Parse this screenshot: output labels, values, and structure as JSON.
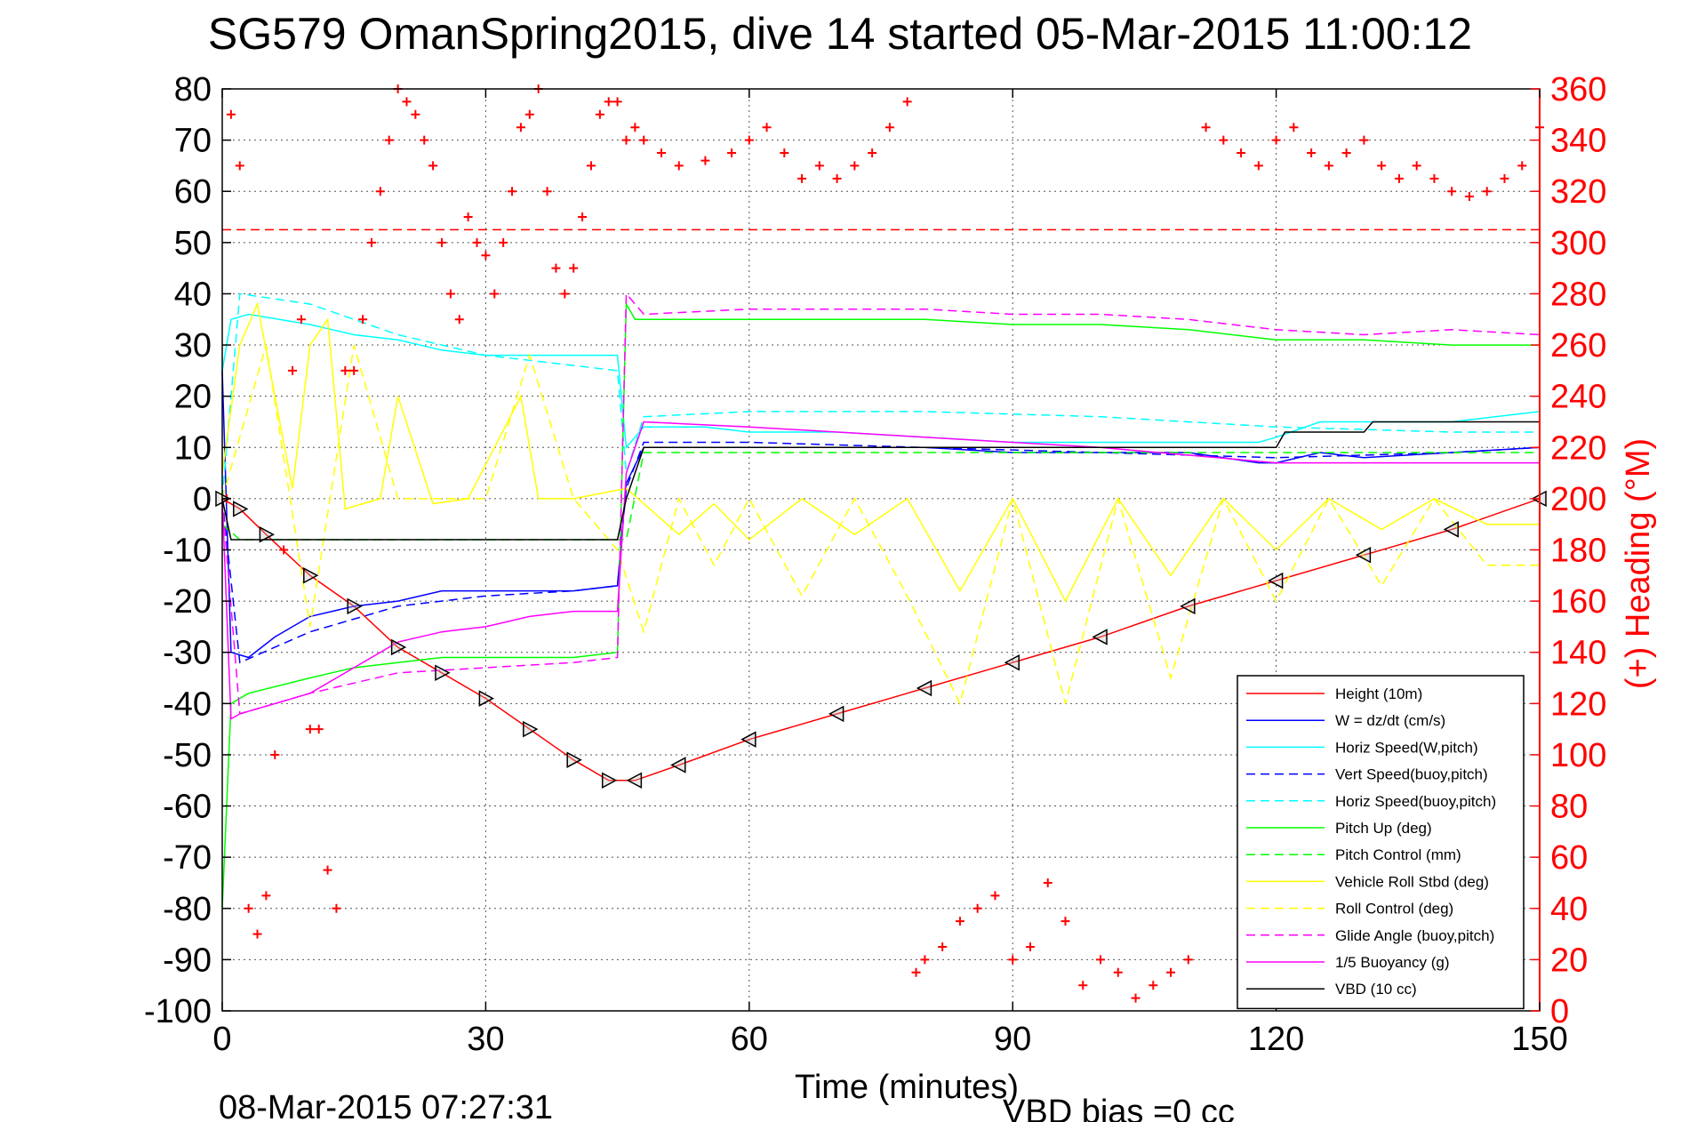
{
  "title": "SG579 OmanSpring2015, dive 14 started 05-Mar-2015 11:00:12",
  "footer_date": "08-Mar-2015 07:27:31",
  "vbd_bias": "VBD bias =0 cc",
  "colors": {
    "red": "#ff0000",
    "blue": "#0000ff",
    "cyan": "#00ffff",
    "green": "#00ff00",
    "yellow": "#ffff00",
    "magenta": "#ff00ff",
    "black": "#000000"
  },
  "chart_data": {
    "type": "line",
    "xlabel": "Time (minutes)",
    "ylabel_right": "(+) Heading (°M)",
    "xlim": [
      0,
      150
    ],
    "ylim_left": [
      -100,
      80
    ],
    "ylim_right": [
      0,
      360
    ],
    "x_ticks": [
      0,
      30,
      60,
      90,
      120,
      150
    ],
    "y_left_ticks": [
      80,
      70,
      60,
      50,
      40,
      30,
      20,
      10,
      0,
      -10,
      -20,
      -30,
      -40,
      -50,
      -60,
      -70,
      -80,
      -90,
      -100
    ],
    "y_right_ticks": [
      360,
      340,
      320,
      300,
      280,
      260,
      240,
      220,
      200,
      180,
      160,
      140,
      120,
      100,
      80,
      60,
      40,
      20,
      0
    ],
    "grid": true,
    "legend_position": "bottom-right",
    "heading_reference_line": 305,
    "series": [
      {
        "name": "Height (10m)",
        "color": "#ff0000",
        "dash": "solid",
        "x": [
          0,
          2,
          5,
          10,
          15,
          20,
          25,
          30,
          35,
          40,
          44,
          47,
          52,
          60,
          70,
          80,
          90,
          100,
          110,
          120,
          130,
          140,
          150
        ],
        "y": [
          0,
          -2,
          -7,
          -15,
          -21,
          -29,
          -34,
          -39,
          -45,
          -51,
          -55,
          -55,
          -52,
          -47,
          -42,
          -37,
          -32,
          -27,
          -21,
          -16,
          -11,
          -6,
          0
        ]
      },
      {
        "name": "W = dz/dt (cm/s)",
        "color": "#0000ff",
        "dash": "solid",
        "x": [
          0,
          1,
          3,
          6,
          10,
          15,
          20,
          25,
          30,
          35,
          40,
          45,
          46,
          48,
          55,
          60,
          70,
          80,
          90,
          100,
          110,
          118,
          120,
          125,
          130,
          140,
          150
        ],
        "y": [
          25,
          -30,
          -31,
          -27,
          -23,
          -21,
          -20,
          -18,
          -18,
          -18,
          -18,
          -17,
          3,
          10,
          10,
          10,
          10,
          10,
          9,
          9,
          9,
          7,
          7,
          9,
          8,
          9,
          10
        ]
      },
      {
        "name": "Horiz Speed(W,pitch)",
        "color": "#00ffff",
        "dash": "solid",
        "x": [
          0,
          1,
          3,
          10,
          15,
          20,
          25,
          30,
          35,
          40,
          45,
          46,
          48,
          55,
          60,
          70,
          80,
          90,
          100,
          110,
          118,
          120,
          125,
          130,
          140,
          150
        ],
        "y": [
          25,
          35,
          36,
          34,
          32,
          31,
          29,
          28,
          28,
          28,
          28,
          10,
          14,
          14,
          13,
          13,
          12,
          11,
          11,
          11,
          11,
          12,
          15,
          15,
          15,
          17
        ]
      },
      {
        "name": "Vert Speed(buoy,pitch)",
        "color": "#0000ff",
        "dash": "dashed",
        "x": [
          0,
          2,
          10,
          20,
          30,
          40,
          45,
          46,
          48,
          60,
          80,
          100,
          120,
          140,
          150
        ],
        "y": [
          0,
          -32,
          -26,
          -21,
          -19,
          -18,
          -17,
          2,
          11,
          11,
          10,
          9,
          8,
          9,
          10
        ]
      },
      {
        "name": "Horiz Speed(buoy,pitch)",
        "color": "#00ffff",
        "dash": "dashed",
        "x": [
          0,
          2,
          10,
          20,
          30,
          40,
          45,
          46,
          48,
          60,
          80,
          100,
          120,
          140,
          150
        ],
        "y": [
          0,
          40,
          38,
          32,
          28,
          26,
          25,
          5,
          16,
          17,
          17,
          16,
          14,
          13,
          13
        ]
      },
      {
        "name": "Pitch Up (deg)",
        "color": "#00ff00",
        "dash": "solid",
        "x": [
          0,
          1,
          3,
          10,
          15,
          20,
          25,
          30,
          35,
          40,
          45,
          46,
          47,
          50,
          60,
          70,
          80,
          90,
          100,
          110,
          120,
          130,
          140,
          150
        ],
        "y": [
          -80,
          -40,
          -38,
          -35,
          -33,
          -32,
          -31,
          -31,
          -31,
          -31,
          -30,
          38,
          35,
          35,
          35,
          35,
          35,
          34,
          34,
          33,
          31,
          31,
          30,
          30
        ]
      },
      {
        "name": "Pitch Control (mm)",
        "color": "#00ff00",
        "dash": "dashed",
        "x": [
          0,
          2,
          45,
          46,
          48,
          150
        ],
        "y": [
          -5,
          -8,
          -8,
          -8,
          9,
          9
        ]
      },
      {
        "name": "Vehicle Roll Stbd (deg)",
        "color": "#ffff00",
        "dash": "solid",
        "x": [
          0,
          2,
          4,
          8,
          10,
          12,
          14,
          18,
          20,
          24,
          28,
          34,
          36,
          40,
          46,
          48,
          52,
          56,
          60,
          66,
          72,
          78,
          84,
          90,
          96,
          102,
          108,
          114,
          120,
          126,
          132,
          138,
          144,
          150
        ],
        "y": [
          5,
          30,
          38,
          2,
          30,
          35,
          -2,
          0,
          20,
          -1,
          0,
          20,
          0,
          0,
          2,
          -1,
          -7,
          -1,
          -8,
          0,
          -7,
          0,
          -18,
          0,
          -20,
          0,
          -15,
          0,
          -10,
          0,
          -6,
          0,
          -5,
          -5
        ]
      },
      {
        "name": "Roll Control (deg)",
        "color": "#ffff00",
        "dash": "dashed",
        "x": [
          0,
          5,
          10,
          15,
          20,
          25,
          30,
          35,
          40,
          45,
          48,
          52,
          56,
          60,
          66,
          72,
          78,
          84,
          90,
          96,
          102,
          108,
          114,
          120,
          126,
          132,
          138,
          144,
          150
        ],
        "y": [
          0,
          30,
          -25,
          30,
          0,
          0,
          0,
          28,
          0,
          -10,
          -26,
          0,
          -13,
          0,
          -19,
          0,
          -19,
          -40,
          0,
          -40,
          0,
          -35,
          0,
          -20,
          0,
          -17,
          0,
          -13,
          -13
        ]
      },
      {
        "name": "Glide Angle (buoy,pitch)",
        "color": "#ff00ff",
        "dash": "dashed",
        "x": [
          0,
          2,
          10,
          20,
          30,
          40,
          45,
          46,
          48,
          60,
          70,
          80,
          90,
          100,
          110,
          120,
          130,
          140,
          150
        ],
        "y": [
          0,
          -42,
          -38,
          -34,
          -33,
          -32,
          -31,
          40,
          36,
          37,
          37,
          37,
          36,
          36,
          35,
          33,
          32,
          33,
          32
        ]
      },
      {
        "name": "1/5 Buoyancy (g)",
        "color": "#ff00ff",
        "dash": "solid",
        "x": [
          0,
          1,
          2,
          10,
          15,
          20,
          25,
          30,
          35,
          40,
          45,
          46,
          48,
          60,
          80,
          100,
          120,
          140,
          150
        ],
        "y": [
          0,
          -43,
          -42,
          -38,
          -33,
          -28,
          -26,
          -25,
          -23,
          -22,
          -22,
          5,
          15,
          14,
          12,
          10,
          7,
          7,
          7
        ]
      },
      {
        "name": "VBD (10 cc)",
        "color": "#000000",
        "dash": "solid",
        "x": [
          0,
          1,
          2,
          45,
          46,
          48,
          60,
          65,
          66,
          90,
          120,
          121,
          122,
          130,
          131,
          150
        ],
        "y": [
          0,
          -8,
          -8,
          -8,
          0,
          10,
          10,
          10,
          10,
          10,
          10,
          13,
          13,
          13,
          15,
          15
        ]
      },
      {
        "name": "Heading",
        "color": "#ff0000",
        "dash": "markers",
        "axis": "right",
        "x": [
          0.5,
          1,
          2,
          3,
          4,
          5,
          6,
          7,
          8,
          9,
          10,
          11,
          12,
          13,
          14,
          15,
          16,
          17,
          18,
          19,
          20,
          21,
          22,
          23,
          24,
          25,
          26,
          27,
          28,
          29,
          30,
          31,
          32,
          33,
          34,
          35,
          36,
          37,
          38,
          39,
          40,
          41,
          42,
          43,
          44,
          45,
          46,
          47,
          48,
          50,
          52,
          55,
          58,
          60,
          62,
          64,
          66,
          68,
          70,
          72,
          74,
          76,
          78,
          79,
          80,
          82,
          84,
          86,
          88,
          90,
          92,
          94,
          96,
          98,
          100,
          102,
          104,
          106,
          108,
          110,
          112,
          114,
          116,
          118,
          120,
          122,
          124,
          126,
          128,
          130,
          132,
          134,
          136,
          138,
          140,
          142,
          144,
          146,
          148,
          150
        ],
        "y": [
          200,
          350,
          330,
          40,
          30,
          45,
          100,
          180,
          250,
          270,
          110,
          110,
          55,
          40,
          250,
          250,
          270,
          300,
          320,
          340,
          360,
          355,
          350,
          340,
          330,
          300,
          280,
          270,
          310,
          300,
          295,
          280,
          300,
          320,
          345,
          350,
          360,
          320,
          290,
          280,
          290,
          310,
          330,
          350,
          355,
          355,
          340,
          345,
          340,
          335,
          330,
          332,
          335,
          340,
          345,
          335,
          325,
          330,
          325,
          330,
          335,
          345,
          355,
          15,
          20,
          25,
          35,
          40,
          45,
          20,
          25,
          50,
          35,
          10,
          20,
          15,
          5,
          10,
          15,
          20,
          345,
          340,
          335,
          330,
          340,
          345,
          335,
          330,
          335,
          340,
          330,
          325,
          330,
          325,
          320,
          318,
          320,
          325,
          330,
          345
        ]
      }
    ]
  }
}
